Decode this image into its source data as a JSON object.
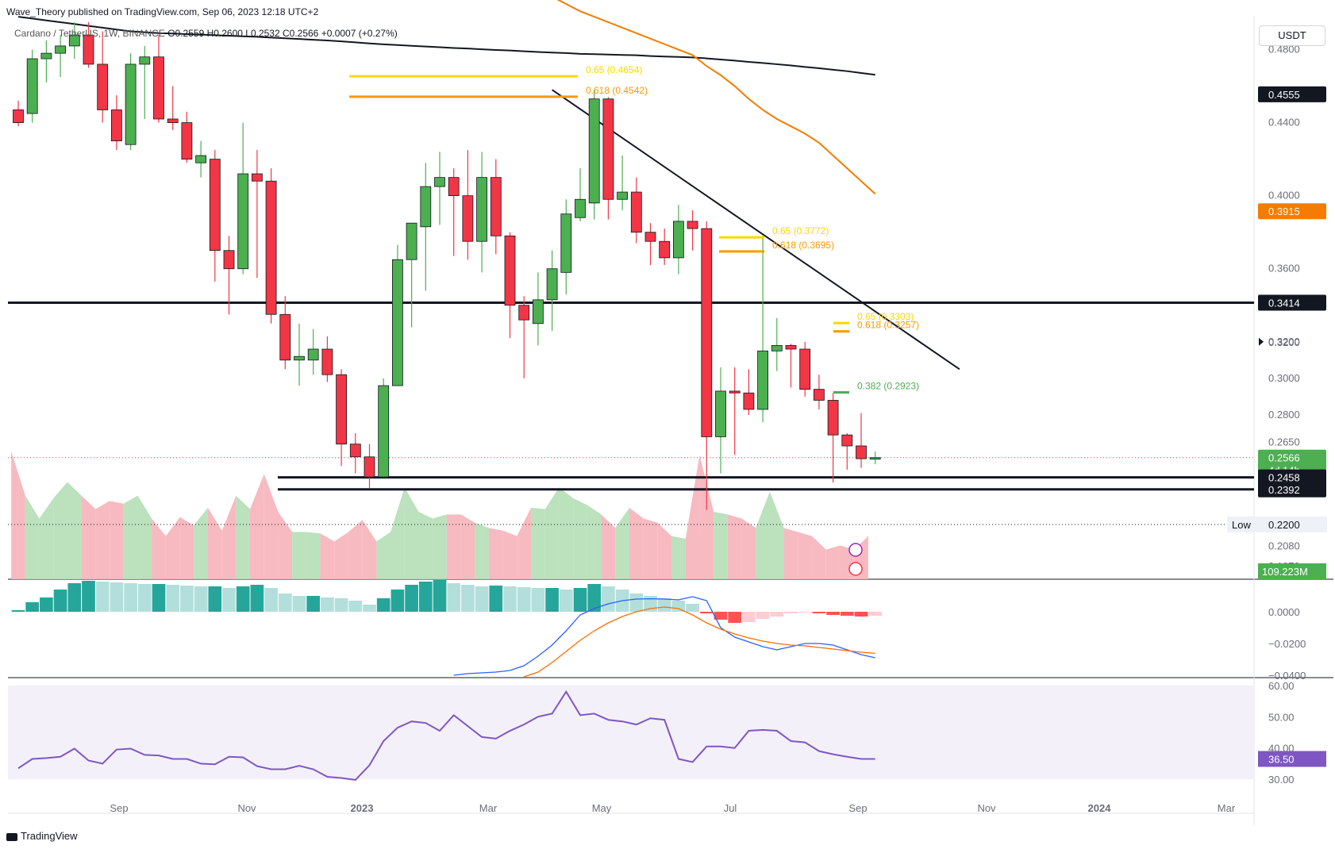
{
  "header": {
    "published_by": "Wave_Theory published on TradingView.com, Sep 06, 2023 12:18 UTC+2",
    "symbol": "Cardano / TetherUS, 1W, BINANCE",
    "ohlc": "O0.2559 H0.2600 L0.2532 C0.2566 +0.0007 (+0.27%)"
  },
  "currency_button": "USDT",
  "footer": {
    "brand": "TradingView"
  },
  "colors": {
    "up": "#4caf50",
    "down": "#f23645",
    "ema_orange": "#f57c00",
    "ema_black": "#131722",
    "rsi": "#7e57c2",
    "macd": "#2962ff",
    "signal": "#ff6d00",
    "fib_yellow": "#ffd600",
    "fib_orange": "#ff9800",
    "fib_green": "#4caf50"
  },
  "chart_data": [
    {
      "type": "candlestick",
      "ylim": [
        0.19,
        0.495
      ],
      "y_ticks": [
        "0.4800",
        "0.4400",
        "0.4000",
        "0.3600",
        "0.3200",
        "0.3000",
        "0.2800",
        "0.2650",
        "0.2080",
        "0.1970"
      ],
      "x_ticks": [
        "Sep",
        "Nov",
        "2023",
        "Mar",
        "May",
        "Jul",
        "Sep",
        "Nov",
        "2024",
        "Mar"
      ],
      "candles": [
        [
          0.447,
          0.452,
          0.438,
          0.44
        ],
        [
          0.445,
          0.48,
          0.44,
          0.475
        ],
        [
          0.475,
          0.485,
          0.462,
          0.478
        ],
        [
          0.478,
          0.488,
          0.465,
          0.482
        ],
        [
          0.482,
          0.495,
          0.475,
          0.488
        ],
        [
          0.488,
          0.495,
          0.47,
          0.472
        ],
        [
          0.472,
          0.49,
          0.44,
          0.447
        ],
        [
          0.447,
          0.455,
          0.425,
          0.43
        ],
        [
          0.428,
          0.478,
          0.425,
          0.472
        ],
        [
          0.472,
          0.482,
          0.442,
          0.476
        ],
        [
          0.476,
          0.488,
          0.44,
          0.442
        ],
        [
          0.442,
          0.46,
          0.436,
          0.44
        ],
        [
          0.44,
          0.446,
          0.418,
          0.42
        ],
        [
          0.418,
          0.43,
          0.41,
          0.422
        ],
        [
          0.42,
          0.425,
          0.353,
          0.37
        ],
        [
          0.37,
          0.378,
          0.335,
          0.36
        ],
        [
          0.36,
          0.44,
          0.357,
          0.412
        ],
        [
          0.412,
          0.425,
          0.355,
          0.408
        ],
        [
          0.408,
          0.415,
          0.33,
          0.335
        ],
        [
          0.335,
          0.345,
          0.305,
          0.31
        ],
        [
          0.31,
          0.33,
          0.296,
          0.312
        ],
        [
          0.31,
          0.327,
          0.302,
          0.316
        ],
        [
          0.316,
          0.323,
          0.298,
          0.302
        ],
        [
          0.302,
          0.305,
          0.252,
          0.264
        ],
        [
          0.264,
          0.27,
          0.248,
          0.257
        ],
        [
          0.257,
          0.264,
          0.24,
          0.246
        ],
        [
          0.246,
          0.3,
          0.246,
          0.296
        ],
        [
          0.296,
          0.373,
          0.296,
          0.365
        ],
        [
          0.365,
          0.382,
          0.328,
          0.385
        ],
        [
          0.383,
          0.418,
          0.348,
          0.405
        ],
        [
          0.405,
          0.424,
          0.384,
          0.41
        ],
        [
          0.41,
          0.415,
          0.367,
          0.4
        ],
        [
          0.4,
          0.425,
          0.365,
          0.375
        ],
        [
          0.375,
          0.424,
          0.358,
          0.41
        ],
        [
          0.41,
          0.42,
          0.368,
          0.378
        ],
        [
          0.378,
          0.38,
          0.322,
          0.34
        ],
        [
          0.34,
          0.345,
          0.3,
          0.332
        ],
        [
          0.33,
          0.358,
          0.318,
          0.343
        ],
        [
          0.343,
          0.37,
          0.326,
          0.36
        ],
        [
          0.358,
          0.398,
          0.346,
          0.39
        ],
        [
          0.388,
          0.415,
          0.386,
          0.398
        ],
        [
          0.396,
          0.458,
          0.387,
          0.453
        ],
        [
          0.453,
          0.454,
          0.387,
          0.398
        ],
        [
          0.398,
          0.422,
          0.392,
          0.402
        ],
        [
          0.402,
          0.41,
          0.374,
          0.38
        ],
        [
          0.38,
          0.385,
          0.362,
          0.375
        ],
        [
          0.375,
          0.382,
          0.362,
          0.366
        ],
        [
          0.366,
          0.395,
          0.357,
          0.386
        ],
        [
          0.386,
          0.392,
          0.37,
          0.382
        ],
        [
          0.382,
          0.386,
          0.228,
          0.268
        ],
        [
          0.268,
          0.306,
          0.248,
          0.293
        ],
        [
          0.293,
          0.306,
          0.258,
          0.292
        ],
        [
          0.292,
          0.305,
          0.28,
          0.283
        ],
        [
          0.283,
          0.378,
          0.276,
          0.315
        ],
        [
          0.315,
          0.333,
          0.304,
          0.318
        ],
        [
          0.318,
          0.319,
          0.295,
          0.316
        ],
        [
          0.316,
          0.32,
          0.29,
          0.294
        ],
        [
          0.294,
          0.302,
          0.283,
          0.288
        ],
        [
          0.288,
          0.292,
          0.243,
          0.269
        ],
        [
          0.269,
          0.27,
          0.25,
          0.263
        ],
        [
          0.263,
          0.281,
          0.251,
          0.256
        ],
        [
          0.256,
          0.26,
          0.253,
          0.2566
        ]
      ],
      "ema_black": [
        0.498,
        0.497,
        0.496,
        0.495,
        0.494,
        0.493,
        0.492,
        0.491,
        0.49,
        0.4895,
        0.489,
        0.4888,
        0.4885,
        0.4882,
        0.4879,
        0.4876,
        0.4873,
        0.487,
        0.4866,
        0.4862,
        0.4858,
        0.4854,
        0.485,
        0.4845,
        0.484,
        0.4834,
        0.4829,
        0.4825,
        0.4821,
        0.4817,
        0.4813,
        0.4809,
        0.4806,
        0.4802,
        0.4798,
        0.4795,
        0.4791,
        0.4787,
        0.4784,
        0.4781,
        0.4777,
        0.4775,
        0.4773,
        0.4771,
        0.4769,
        0.4765,
        0.4762,
        0.476,
        0.4757,
        0.4752,
        0.4746,
        0.474,
        0.4733,
        0.4727,
        0.472,
        0.4713,
        0.4705,
        0.4698,
        0.469,
        0.4682,
        0.4672,
        0.4662
      ],
      "ema_orange": [
        null,
        null,
        null,
        null,
        null,
        null,
        null,
        null,
        null,
        null,
        null,
        null,
        null,
        null,
        null,
        null,
        null,
        null,
        null,
        null,
        null,
        null,
        null,
        null,
        null,
        null,
        null,
        null,
        null,
        null,
        null,
        null,
        null,
        null,
        0.525,
        0.521,
        0.517,
        0.513,
        0.509,
        0.505,
        0.501,
        0.498,
        0.495,
        0.492,
        0.489,
        0.486,
        0.483,
        0.48,
        0.477,
        0.471,
        0.466,
        0.46,
        0.453,
        0.447,
        0.442,
        0.438,
        0.434,
        0.429,
        0.422,
        0.415,
        0.408,
        0.401
      ],
      "annotations": [
        {
          "label": "0.65 (0.4654)",
          "value": 0.4654,
          "color": "#ffd600"
        },
        {
          "label": "0.618 (0.4542)",
          "value": 0.4542,
          "color": "#ff9800"
        },
        {
          "label": "0.65 (0.3772)",
          "value": 0.3772,
          "color": "#ffd600"
        },
        {
          "label": "0.618 (0.3695)",
          "value": 0.3695,
          "color": "#ff9800"
        },
        {
          "label": "0.65 (0.3303)",
          "value": 0.3303,
          "color": "#ffd600"
        },
        {
          "label": "0.618 (0.3257)",
          "value": 0.3257,
          "color": "#ff9800"
        },
        {
          "label": "0.382 (0.2923)",
          "value": 0.2923,
          "color": "#4caf50"
        }
      ],
      "horizontal_levels": [
        0.3414,
        0.2458,
        0.2392
      ],
      "price_labels": [
        {
          "text": "0.4555",
          "value": 0.4555,
          "bg": "#131722"
        },
        {
          "text": "0.3915",
          "value": 0.3915,
          "bg": "#f57c00"
        },
        {
          "text": "0.3414",
          "value": 0.3414,
          "bg": "#131722"
        },
        {
          "text": "0.3200",
          "value": 0.32,
          "bg": "none"
        },
        {
          "text": "0.2566",
          "sub": "4d 14h",
          "value": 0.2566,
          "bg": "#4caf50"
        },
        {
          "text": "0.2458",
          "value": 0.2458,
          "bg": "#131722"
        },
        {
          "text": "0.2392",
          "value": 0.2392,
          "bg": "#131722"
        }
      ],
      "low_label": {
        "label": "Low",
        "value": "0.2200"
      },
      "volume_label": "109.223M",
      "volume": [
        [
          0.95,
          1
        ],
        [
          0.62,
          1
        ],
        [
          0.45,
          1
        ],
        [
          0.6,
          0
        ],
        [
          0.72,
          0
        ],
        [
          0.62,
          0
        ],
        [
          0.52,
          1
        ],
        [
          0.58,
          0
        ],
        [
          0.56,
          0
        ],
        [
          0.62,
          0
        ],
        [
          0.45,
          0
        ],
        [
          0.32,
          1
        ],
        [
          0.46,
          0
        ],
        [
          0.4,
          0
        ],
        [
          0.53,
          0
        ],
        [
          0.36,
          0
        ],
        [
          0.62,
          1
        ],
        [
          0.52,
          1
        ],
        [
          0.78,
          0
        ],
        [
          0.5,
          0
        ],
        [
          0.35,
          1
        ],
        [
          0.35,
          1
        ],
        [
          0.34,
          1
        ],
        [
          0.28,
          0
        ],
        [
          0.35,
          0
        ],
        [
          0.44,
          0
        ],
        [
          0.28,
          0
        ],
        [
          0.35,
          1
        ],
        [
          0.68,
          1
        ],
        [
          0.5,
          1
        ],
        [
          0.45,
          1
        ],
        [
          0.48,
          0
        ],
        [
          0.48,
          0
        ],
        [
          0.42,
          1
        ],
        [
          0.38,
          1
        ],
        [
          0.36,
          0
        ],
        [
          0.32,
          0
        ],
        [
          0.53,
          0
        ],
        [
          0.52,
          1
        ],
        [
          0.68,
          1
        ],
        [
          0.6,
          1
        ],
        [
          0.55,
          1
        ],
        [
          0.48,
          1
        ],
        [
          0.38,
          1
        ],
        [
          0.53,
          1
        ],
        [
          0.45,
          0
        ],
        [
          0.42,
          0
        ],
        [
          0.32,
          0
        ],
        [
          0.3,
          1
        ],
        [
          0.92,
          0
        ],
        [
          0.5,
          0
        ],
        [
          0.48,
          1
        ],
        [
          0.45,
          0
        ],
        [
          0.38,
          0
        ],
        [
          0.65,
          1
        ],
        [
          0.38,
          0
        ],
        [
          0.35,
          0
        ],
        [
          0.32,
          0
        ],
        [
          0.22,
          0
        ],
        [
          0.25,
          0
        ],
        [
          0.22,
          0
        ],
        [
          0.32,
          1
        ]
      ]
    },
    {
      "type": "histogram+lines",
      "name": "MACD",
      "ylim": [
        -0.0415,
        0.0195
      ],
      "y_ticks": [
        "0.0000",
        "−0.0200",
        "−0.0400"
      ],
      "histogram": [
        0.001,
        0.006,
        0.009,
        0.014,
        0.018,
        0.0195,
        0.019,
        0.0185,
        0.018,
        0.0175,
        0.0175,
        0.017,
        0.0165,
        0.016,
        0.016,
        0.015,
        0.016,
        0.017,
        0.015,
        0.0115,
        0.01,
        0.01,
        0.009,
        0.0085,
        0.007,
        0.0045,
        0.0085,
        0.014,
        0.017,
        0.019,
        0.02,
        0.018,
        0.017,
        0.016,
        0.0165,
        0.016,
        0.0155,
        0.015,
        0.015,
        0.014,
        0.015,
        0.0175,
        0.016,
        0.014,
        0.0115,
        0.01,
        0.0085,
        0.007,
        0.005,
        -0.001,
        -0.005,
        -0.007,
        -0.0065,
        -0.0045,
        -0.003,
        -0.001,
        -0.0005,
        -0.001,
        -0.002,
        -0.0025,
        -0.003,
        -0.0025
      ],
      "macd_line": [
        null,
        null,
        null,
        null,
        null,
        null,
        null,
        null,
        null,
        null,
        null,
        null,
        null,
        null,
        null,
        null,
        null,
        null,
        null,
        null,
        null,
        null,
        null,
        null,
        null,
        null,
        null,
        null,
        null,
        null,
        null,
        -0.04,
        -0.039,
        -0.0385,
        -0.038,
        -0.037,
        -0.034,
        -0.028,
        -0.021,
        -0.012,
        -0.002,
        0.002,
        0.005,
        0.007,
        0.008,
        0.0082,
        0.008,
        0.0075,
        0.0095,
        0.007,
        -0.01,
        -0.016,
        -0.019,
        -0.022,
        -0.024,
        -0.022,
        -0.02,
        -0.02,
        -0.021,
        -0.024,
        -0.027,
        -0.029
      ],
      "signal_line": [
        null,
        null,
        null,
        null,
        null,
        null,
        null,
        null,
        null,
        null,
        null,
        null,
        null,
        null,
        null,
        null,
        null,
        null,
        null,
        null,
        null,
        null,
        null,
        null,
        null,
        null,
        null,
        null,
        null,
        null,
        null,
        null,
        null,
        null,
        null,
        null,
        -0.041,
        -0.038,
        -0.032,
        -0.025,
        -0.018,
        -0.012,
        -0.007,
        -0.003,
        0.0,
        0.002,
        0.003,
        0.002,
        -0.002,
        -0.007,
        -0.011,
        -0.014,
        -0.0165,
        -0.0185,
        -0.02,
        -0.021,
        -0.0215,
        -0.0225,
        -0.0235,
        -0.0245,
        -0.0255,
        -0.0262
      ]
    },
    {
      "type": "line",
      "name": "RSI",
      "ylim": [
        28,
        62
      ],
      "y_ticks": [
        "60.00",
        "50.00",
        "40.00",
        "30.00"
      ],
      "band": [
        30,
        60
      ],
      "value_label": "36.50",
      "values": [
        33.5,
        36.5,
        36.8,
        37.2,
        39.8,
        36,
        35,
        39.5,
        39.8,
        37.8,
        37.6,
        36.5,
        36.5,
        35,
        34.8,
        37.2,
        37,
        34.2,
        33.2,
        33.2,
        34.3,
        33.2,
        30.8,
        30.4,
        29.8,
        34.5,
        42.2,
        46.5,
        48.5,
        48,
        45.5,
        50.5,
        47,
        43.5,
        43,
        45.5,
        47.5,
        50,
        51,
        58,
        50.5,
        51,
        49,
        48.5,
        47.5,
        49.5,
        49,
        36.5,
        35.5,
        40.5,
        40.5,
        40,
        45.5,
        45.8,
        45.5,
        42.2,
        41.8,
        39,
        38,
        37.2,
        36.5,
        36.5
      ]
    }
  ]
}
